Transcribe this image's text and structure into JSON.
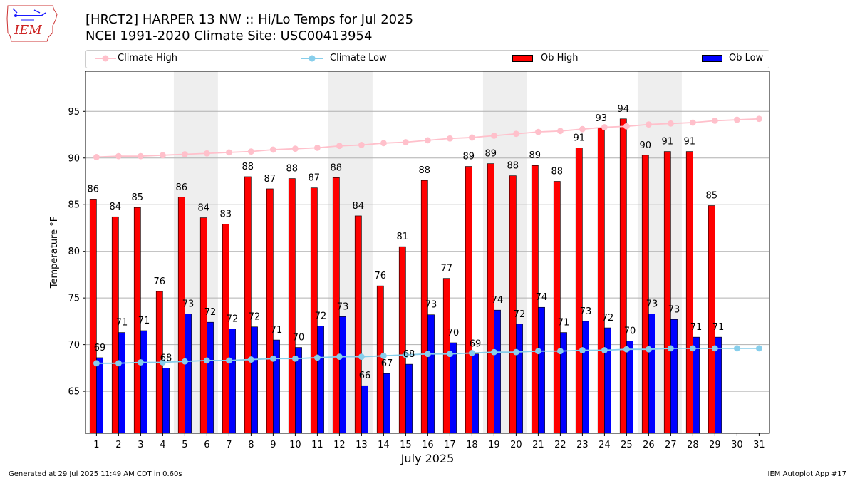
{
  "header": {
    "logo_text": "IEM",
    "title_line1": "[HRCT2] HARPER 13 NW :: Hi/Lo Temps for Jul 2025",
    "title_line2": "NCEI 1991-2020 Climate Site: USC00413954"
  },
  "legend": {
    "climate_high": "Climate High",
    "climate_low": "Climate Low",
    "ob_high": "Ob High",
    "ob_low": "Ob Low"
  },
  "colors": {
    "ob_high": "#ff0000",
    "ob_low": "#0000ff",
    "climate_high": "#ffc0cb",
    "climate_low": "#87ceeb",
    "weekend_shade": "#eeeeee",
    "grid": "#b0b0b0"
  },
  "footer": {
    "left": "Generated at 29 Jul 2025 11:49 AM CDT in 0.60s",
    "right": "IEM Autoplot App #17"
  },
  "chart_data": {
    "type": "bar",
    "title": "[HRCT2] HARPER 13 NW :: Hi/Lo Temps for Jul 2025",
    "subtitle": "NCEI 1991-2020 Climate Site: USC00413954",
    "xlabel": "July 2025",
    "ylabel": "Temperature °F",
    "ylim": [
      60.5,
      99.3
    ],
    "yticks": [
      65,
      70,
      75,
      80,
      85,
      90,
      95
    ],
    "grid": "horizontal",
    "legend_position": "top",
    "categories": [
      "1",
      "2",
      "3",
      "4",
      "5",
      "6",
      "7",
      "8",
      "9",
      "10",
      "11",
      "12",
      "13",
      "14",
      "15",
      "16",
      "17",
      "18",
      "19",
      "20",
      "21",
      "22",
      "23",
      "24",
      "25",
      "26",
      "27",
      "28",
      "29",
      "30",
      "31"
    ],
    "weekend_shaded_days": [
      [
        5,
        6
      ],
      [
        12,
        13
      ],
      [
        19,
        20
      ],
      [
        26,
        27
      ]
    ],
    "series": [
      {
        "name": "Ob High",
        "kind": "bar",
        "values": [
          85.6,
          83.7,
          84.7,
          75.7,
          85.8,
          83.6,
          82.9,
          88.0,
          86.7,
          87.8,
          86.8,
          87.9,
          83.8,
          76.3,
          80.5,
          87.6,
          77.1,
          89.1,
          89.4,
          88.1,
          89.2,
          87.5,
          91.1,
          93.2,
          94.2,
          90.3,
          90.7,
          90.7,
          84.9,
          null,
          null
        ],
        "labels": [
          "86",
          "84",
          "85",
          "76",
          "86",
          "84",
          "83",
          "88",
          "87",
          "88",
          "87",
          "88",
          "84",
          "76",
          "81",
          "88",
          "77",
          "89",
          "89",
          "88",
          "89",
          "88",
          "91",
          "93",
          "94",
          "90",
          "91",
          "91",
          "85",
          "",
          ""
        ]
      },
      {
        "name": "Ob Low",
        "kind": "bar",
        "values": [
          68.6,
          71.3,
          71.5,
          67.5,
          73.3,
          72.4,
          71.7,
          71.9,
          70.5,
          69.7,
          72.0,
          73.0,
          65.6,
          66.9,
          67.9,
          73.2,
          70.2,
          69.0,
          73.7,
          72.2,
          74.0,
          71.3,
          72.5,
          71.8,
          70.4,
          73.3,
          72.7,
          70.8,
          70.8,
          null,
          null
        ],
        "labels": [
          "69",
          "71",
          "71",
          "68",
          "73",
          "72",
          "72",
          "72",
          "71",
          "70",
          "72",
          "73",
          "66",
          "67",
          "68",
          "73",
          "70",
          "69",
          "74",
          "72",
          "74",
          "71",
          "73",
          "72",
          "70",
          "73",
          "73",
          "71",
          "71",
          "",
          ""
        ]
      },
      {
        "name": "Climate High",
        "kind": "line",
        "values": [
          90.1,
          90.2,
          90.2,
          90.3,
          90.4,
          90.5,
          90.6,
          90.7,
          90.9,
          91.0,
          91.1,
          91.3,
          91.4,
          91.6,
          91.7,
          91.9,
          92.1,
          92.2,
          92.4,
          92.6,
          92.8,
          92.9,
          93.1,
          93.3,
          93.4,
          93.6,
          93.7,
          93.8,
          94.0,
          94.1,
          94.2
        ]
      },
      {
        "name": "Climate Low",
        "kind": "line",
        "values": [
          68.0,
          68.0,
          68.1,
          68.1,
          68.2,
          68.3,
          68.3,
          68.4,
          68.5,
          68.5,
          68.6,
          68.7,
          68.7,
          68.8,
          68.9,
          69.0,
          69.0,
          69.1,
          69.2,
          69.2,
          69.3,
          69.3,
          69.4,
          69.4,
          69.5,
          69.5,
          69.6,
          69.6,
          69.6,
          69.6,
          69.6
        ]
      }
    ]
  }
}
